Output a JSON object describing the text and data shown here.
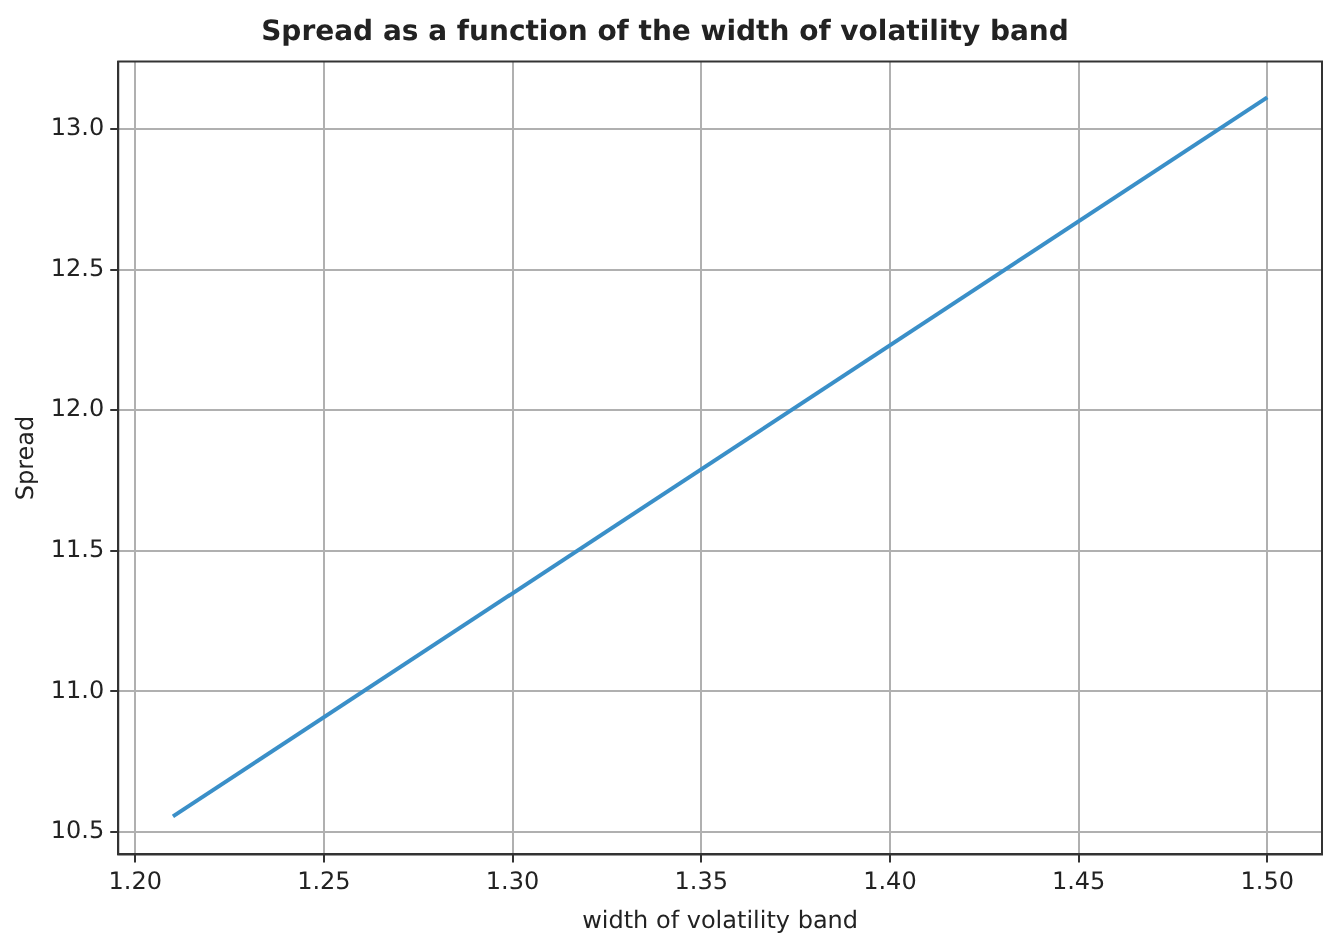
{
  "chart_data": {
    "type": "line",
    "title": "Spread as a function of the width of volatility band",
    "xlabel": "width of volatility band",
    "ylabel": "Spread",
    "x": [
      1.21,
      1.5
    ],
    "series": [
      {
        "color": "#3a8fc8",
        "values": [
          10.555,
          13.113
        ]
      }
    ],
    "xlim": [
      1.1955,
      1.5145
    ],
    "xticks": [
      {
        "value": 1.2,
        "label": "1.20"
      },
      {
        "value": 1.25,
        "label": "1.25"
      },
      {
        "value": 1.3,
        "label": "1.30"
      },
      {
        "value": 1.35,
        "label": "1.35"
      },
      {
        "value": 1.4,
        "label": "1.40"
      },
      {
        "value": 1.45,
        "label": "1.45"
      },
      {
        "value": 1.5,
        "label": "1.50"
      }
    ],
    "ylim": [
      10.42,
      13.24
    ],
    "yticks": [
      {
        "value": 10.5,
        "label": "10.5"
      },
      {
        "value": 11,
        "label": "11.0"
      },
      {
        "value": 11.5,
        "label": "11.5"
      },
      {
        "value": 12,
        "label": "12.0"
      },
      {
        "value": 12.5,
        "label": "12.5"
      },
      {
        "value": 13,
        "label": "13.0"
      }
    ],
    "grid": true,
    "legend": false,
    "marker": "none",
    "line_style": "solid"
  }
}
